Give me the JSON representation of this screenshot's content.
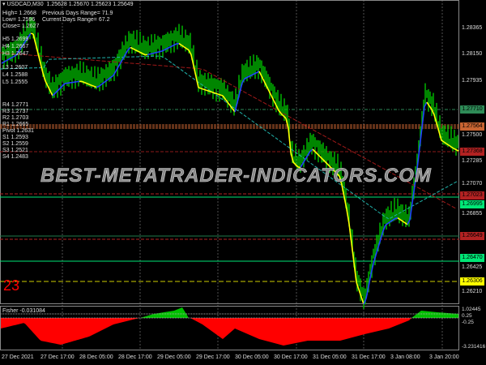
{
  "header": {
    "symbol": "USDCAD,M30",
    "ohlc": "1.25628 1.25670 1.25623 1.25649",
    "high": "High= 1.2668",
    "low": "Low= 1.2596",
    "close": "Close= 1.2627",
    "prev_range": "Previous Days Range= 71.9",
    "curr_range": "Current Days Range= 67.2"
  },
  "levels_left": [
    "H5 1.2699",
    "H4 1.2667",
    "H3 1.2647",
    "L3 1.2607",
    "L4 1.2588",
    "L5 1.2555"
  ],
  "pivots_left": [
    "R4 1.2771",
    "R3 1.2737",
    "R2 1.2703",
    "R1 1.2665",
    "Pivot 1.2631",
    "S1 1.2593",
    "S2 1.2559",
    "S3 1.2521",
    "S4 1.2483"
  ],
  "price_axis": [
    "1.28365",
    "1.28150",
    "1.27935",
    "1.27500",
    "1.27285",
    "1.27070",
    "1.26855",
    "1.26425",
    "1.26210"
  ],
  "price_tags": [
    {
      "value": "1.27710",
      "color": "#2e8b57"
    },
    {
      "value": "1.27564",
      "color": "#c86432"
    },
    {
      "value": "1.27368",
      "color": "#b22222"
    },
    {
      "value": "1.26995",
      "color": "#00e676"
    },
    {
      "value": "1.27023",
      "color": "#b22222"
    },
    {
      "value": "1.26649",
      "color": "#b22222"
    },
    {
      "value": "1.26470",
      "color": "#00e676"
    },
    {
      "value": "1.26306",
      "color": "#ffff00"
    }
  ],
  "indicator": {
    "label": "Fisher -0.031084",
    "axis": [
      "1.02445",
      "0.25",
      "-0.25",
      "-3.231416"
    ]
  },
  "counter": "23",
  "watermark": "BEST-METATRADER-INDICATORS.COM",
  "time_axis": [
    "27 Dec 2021",
    "27 Dec 17:00",
    "28 Dec 05:00",
    "28 Dec 17:00",
    "29 Dec 05:00",
    "29 Dec 17:00",
    "30 Dec 05:00",
    "30 Dec 17:00",
    "31 Dec 05:00",
    "31 Dec 17:00",
    "3 Jan 08:00",
    "3 Jan 20:00"
  ]
}
